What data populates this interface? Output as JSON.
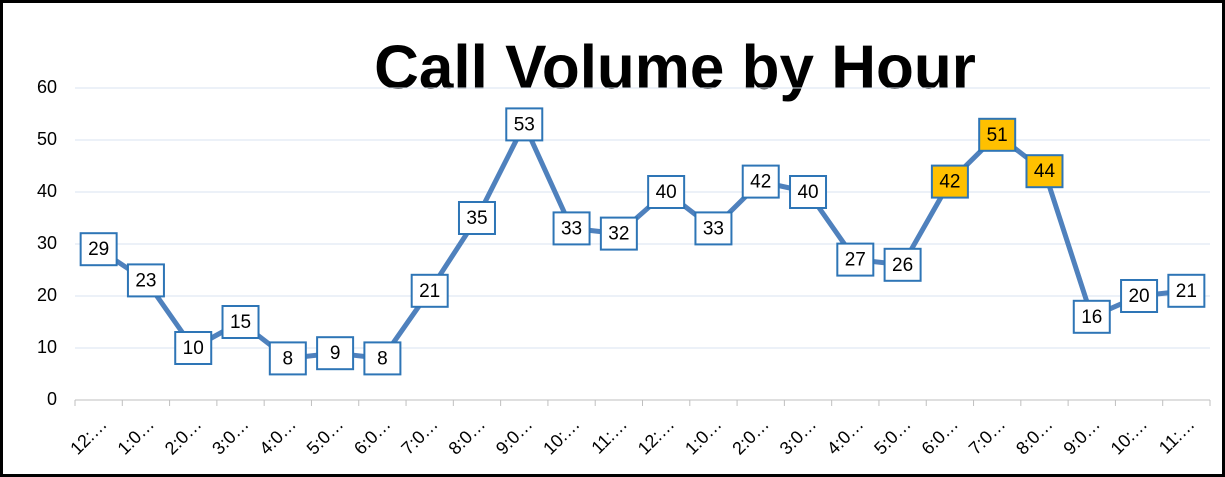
{
  "chart_data": {
    "type": "line",
    "title": "Call Volume by Hour",
    "categories": [
      "12:…",
      "1:0…",
      "2:0…",
      "3:0…",
      "4:0…",
      "5:0…",
      "6:0…",
      "7:0…",
      "8:0…",
      "9:0…",
      "10:…",
      "11:…",
      "12:…",
      "1:0…",
      "2:0…",
      "3:0…",
      "4:0…",
      "5:0…",
      "6:0…",
      "7:0…",
      "8:0…",
      "9:0…",
      "10:…",
      "11:…"
    ],
    "series": [
      {
        "color": "#4f81bd",
        "values": [
          29,
          23,
          10,
          15,
          8,
          9,
          8,
          21,
          35,
          53,
          33,
          32,
          40,
          33,
          42,
          40,
          27,
          26,
          42,
          51,
          44,
          16,
          20,
          21
        ],
        "label_fills": [
          "#ffffff",
          "#ffffff",
          "#ffffff",
          "#ffffff",
          "#ffffff",
          "#ffffff",
          "#ffffff",
          "#ffffff",
          "#ffffff",
          "#ffffff",
          "#ffffff",
          "#ffffff",
          "#ffffff",
          "#ffffff",
          "#ffffff",
          "#ffffff",
          "#ffffff",
          "#ffffff",
          "#ffc000",
          "#ffc000",
          "#ffc000",
          "#ffffff",
          "#ffffff",
          "#ffffff"
        ]
      }
    ],
    "ylim": [
      0,
      60
    ],
    "yticks": [
      0,
      10,
      20,
      30,
      40,
      50,
      60
    ],
    "grid": true
  }
}
